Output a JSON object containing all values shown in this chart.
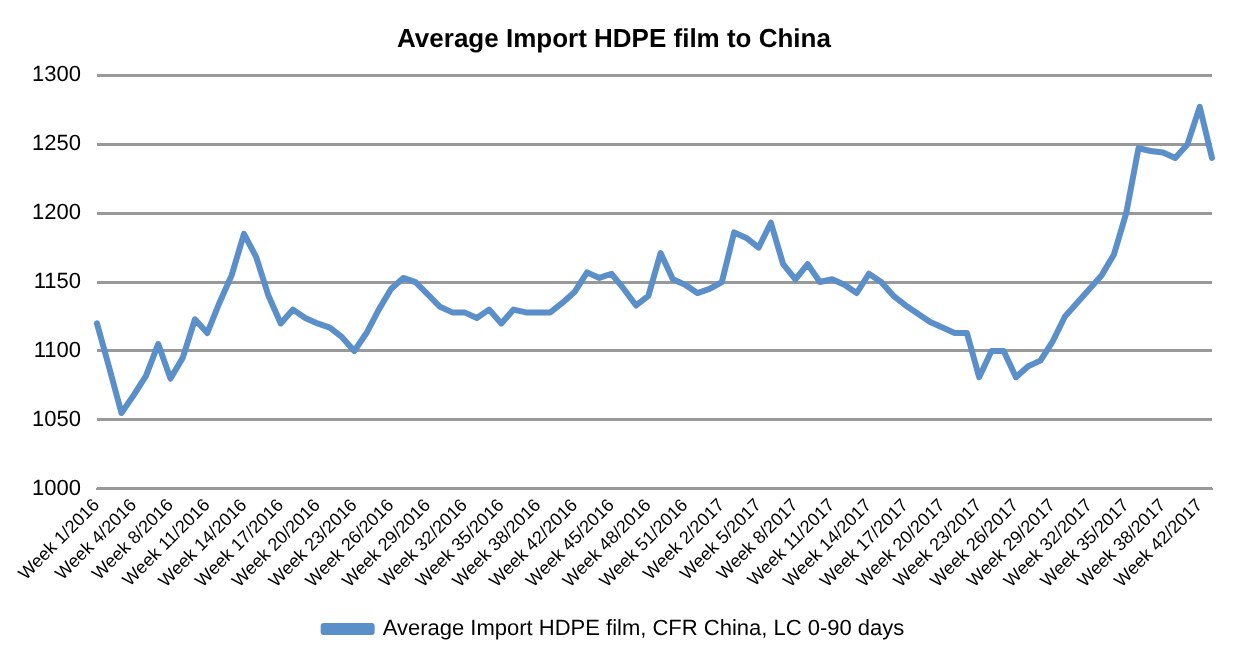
{
  "chart_data": {
    "type": "line",
    "title": "Average Import HDPE film to China",
    "categories": [
      "Week 1/2016",
      null,
      null,
      "Week 4/2016",
      null,
      null,
      "Week 8/2016",
      null,
      null,
      "Week 11/2016",
      null,
      null,
      "Week 14/2016",
      null,
      null,
      "Week 17/2016",
      null,
      null,
      "Week 20/2016",
      null,
      null,
      "Week 23/2016",
      null,
      null,
      "Week 26/2016",
      null,
      null,
      "Week 29/2016",
      null,
      null,
      "Week 32/2016",
      null,
      null,
      "Week 35/2016",
      null,
      null,
      "Week 38/2016",
      null,
      null,
      "Week 42/2016",
      null,
      null,
      "Week 45/2016",
      null,
      null,
      "Week 48/2016",
      null,
      null,
      "Week 51/2016",
      null,
      null,
      "Week 2/2017",
      null,
      null,
      "Week 5/2017",
      null,
      null,
      "Week 8/2017",
      null,
      null,
      "Week 11/2017",
      null,
      null,
      "Week 14/2017",
      null,
      null,
      "Week 17/2017",
      null,
      null,
      "Week 20/2017",
      null,
      null,
      "Week 23/2017",
      null,
      null,
      "Week 26/2017",
      null,
      null,
      "Week 29/2017",
      null,
      null,
      "Week 32/2017",
      null,
      null,
      "Week 35/2017",
      null,
      null,
      "Week 38/2017",
      null,
      null,
      "Week 42/2017",
      null
    ],
    "series": [
      {
        "name": "Average Import HDPE film, CFR China, LC 0-90 days",
        "color": "#5b8fc9",
        "values": [
          1120,
          1088,
          1055,
          1068,
          1082,
          1105,
          1080,
          1095,
          1123,
          1113,
          1135,
          1155,
          1185,
          1168,
          1140,
          1120,
          1130,
          1124,
          1120,
          1117,
          1110,
          1100,
          1113,
          1130,
          1145,
          1153,
          1150,
          1141,
          1132,
          1128,
          1128,
          1124,
          1130,
          1120,
          1130,
          1128,
          1128,
          1128,
          1135,
          1143,
          1157,
          1153,
          1156,
          1145,
          1133,
          1140,
          1171,
          1152,
          1148,
          1142,
          1145,
          1150,
          1186,
          1182,
          1175,
          1193,
          1163,
          1152,
          1163,
          1150,
          1152,
          1148,
          1142,
          1156,
          1150,
          1140,
          1133,
          1127,
          1121,
          1117,
          1113,
          1113,
          1081,
          1100,
          1100,
          1081,
          1089,
          1093,
          1107,
          1125,
          1135,
          1145,
          1155,
          1170,
          1200,
          1247,
          1245,
          1244,
          1240,
          1250,
          1277,
          1240
        ]
      }
    ],
    "ylim": [
      1000,
      1300
    ],
    "yticks": [
      1000,
      1050,
      1100,
      1150,
      1200,
      1250,
      1300
    ],
    "grid": "y",
    "legend": "bottom",
    "marker": "none",
    "line_style": "solid"
  }
}
